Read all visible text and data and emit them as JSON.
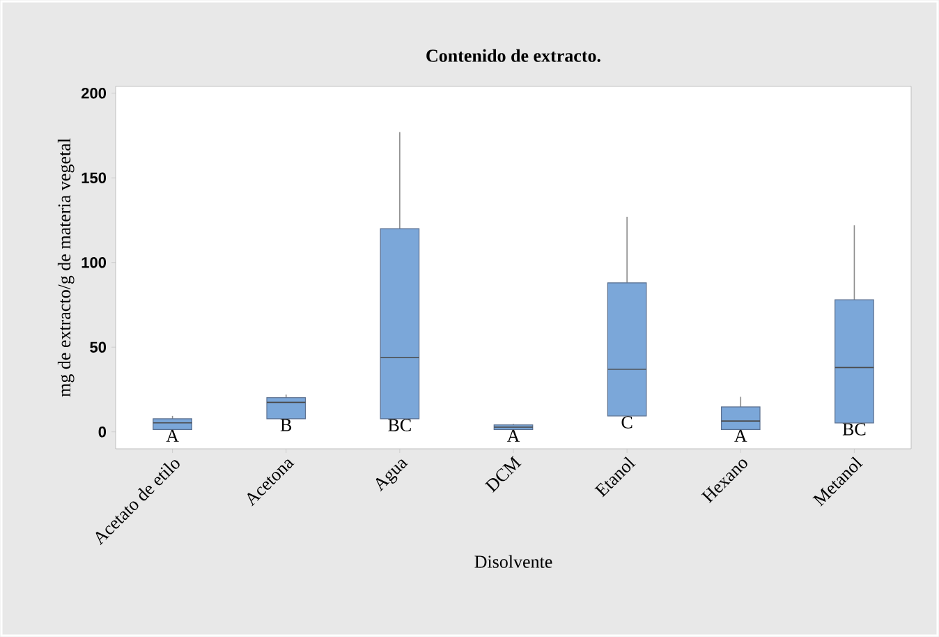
{
  "chart_data": {
    "type": "box",
    "title": "Contenido de extracto.",
    "xlabel": "Disolvente",
    "ylabel": "mg de extracto/g de materia vegetal",
    "categories": [
      "Acetato de etilo",
      "Acetona",
      "Agua",
      "DCM",
      "Etanol",
      "Hexano",
      "Metanol"
    ],
    "color": "#7ba7d9",
    "boxes": [
      {
        "low": 1.4,
        "q1": 1.4,
        "median": 5.3,
        "q3": 7.7,
        "high": 9.4
      },
      {
        "low": 7.7,
        "q1": 7.7,
        "median": 17.4,
        "q3": 20.2,
        "high": 22
      },
      {
        "low": 7.7,
        "q1": 7.7,
        "median": 44,
        "q3": 120,
        "high": 177
      },
      {
        "low": 1.4,
        "q1": 1.4,
        "median": 2.8,
        "q3": 4.1,
        "high": 4.7
      },
      {
        "low": 9.4,
        "q1": 9.4,
        "median": 37,
        "q3": 88,
        "high": 127
      },
      {
        "low": 1.4,
        "q1": 1.4,
        "median": 6.4,
        "q3": 14.7,
        "high": 20.7
      },
      {
        "low": 5.3,
        "q1": 5.3,
        "median": 38,
        "q3": 78,
        "high": 122
      }
    ],
    "ylim": [
      -10,
      204
    ],
    "yticks": [
      0,
      50,
      100,
      150,
      200
    ],
    "annotations": [
      "A",
      "B",
      "BC",
      "A",
      "C",
      "A",
      "BC"
    ]
  }
}
